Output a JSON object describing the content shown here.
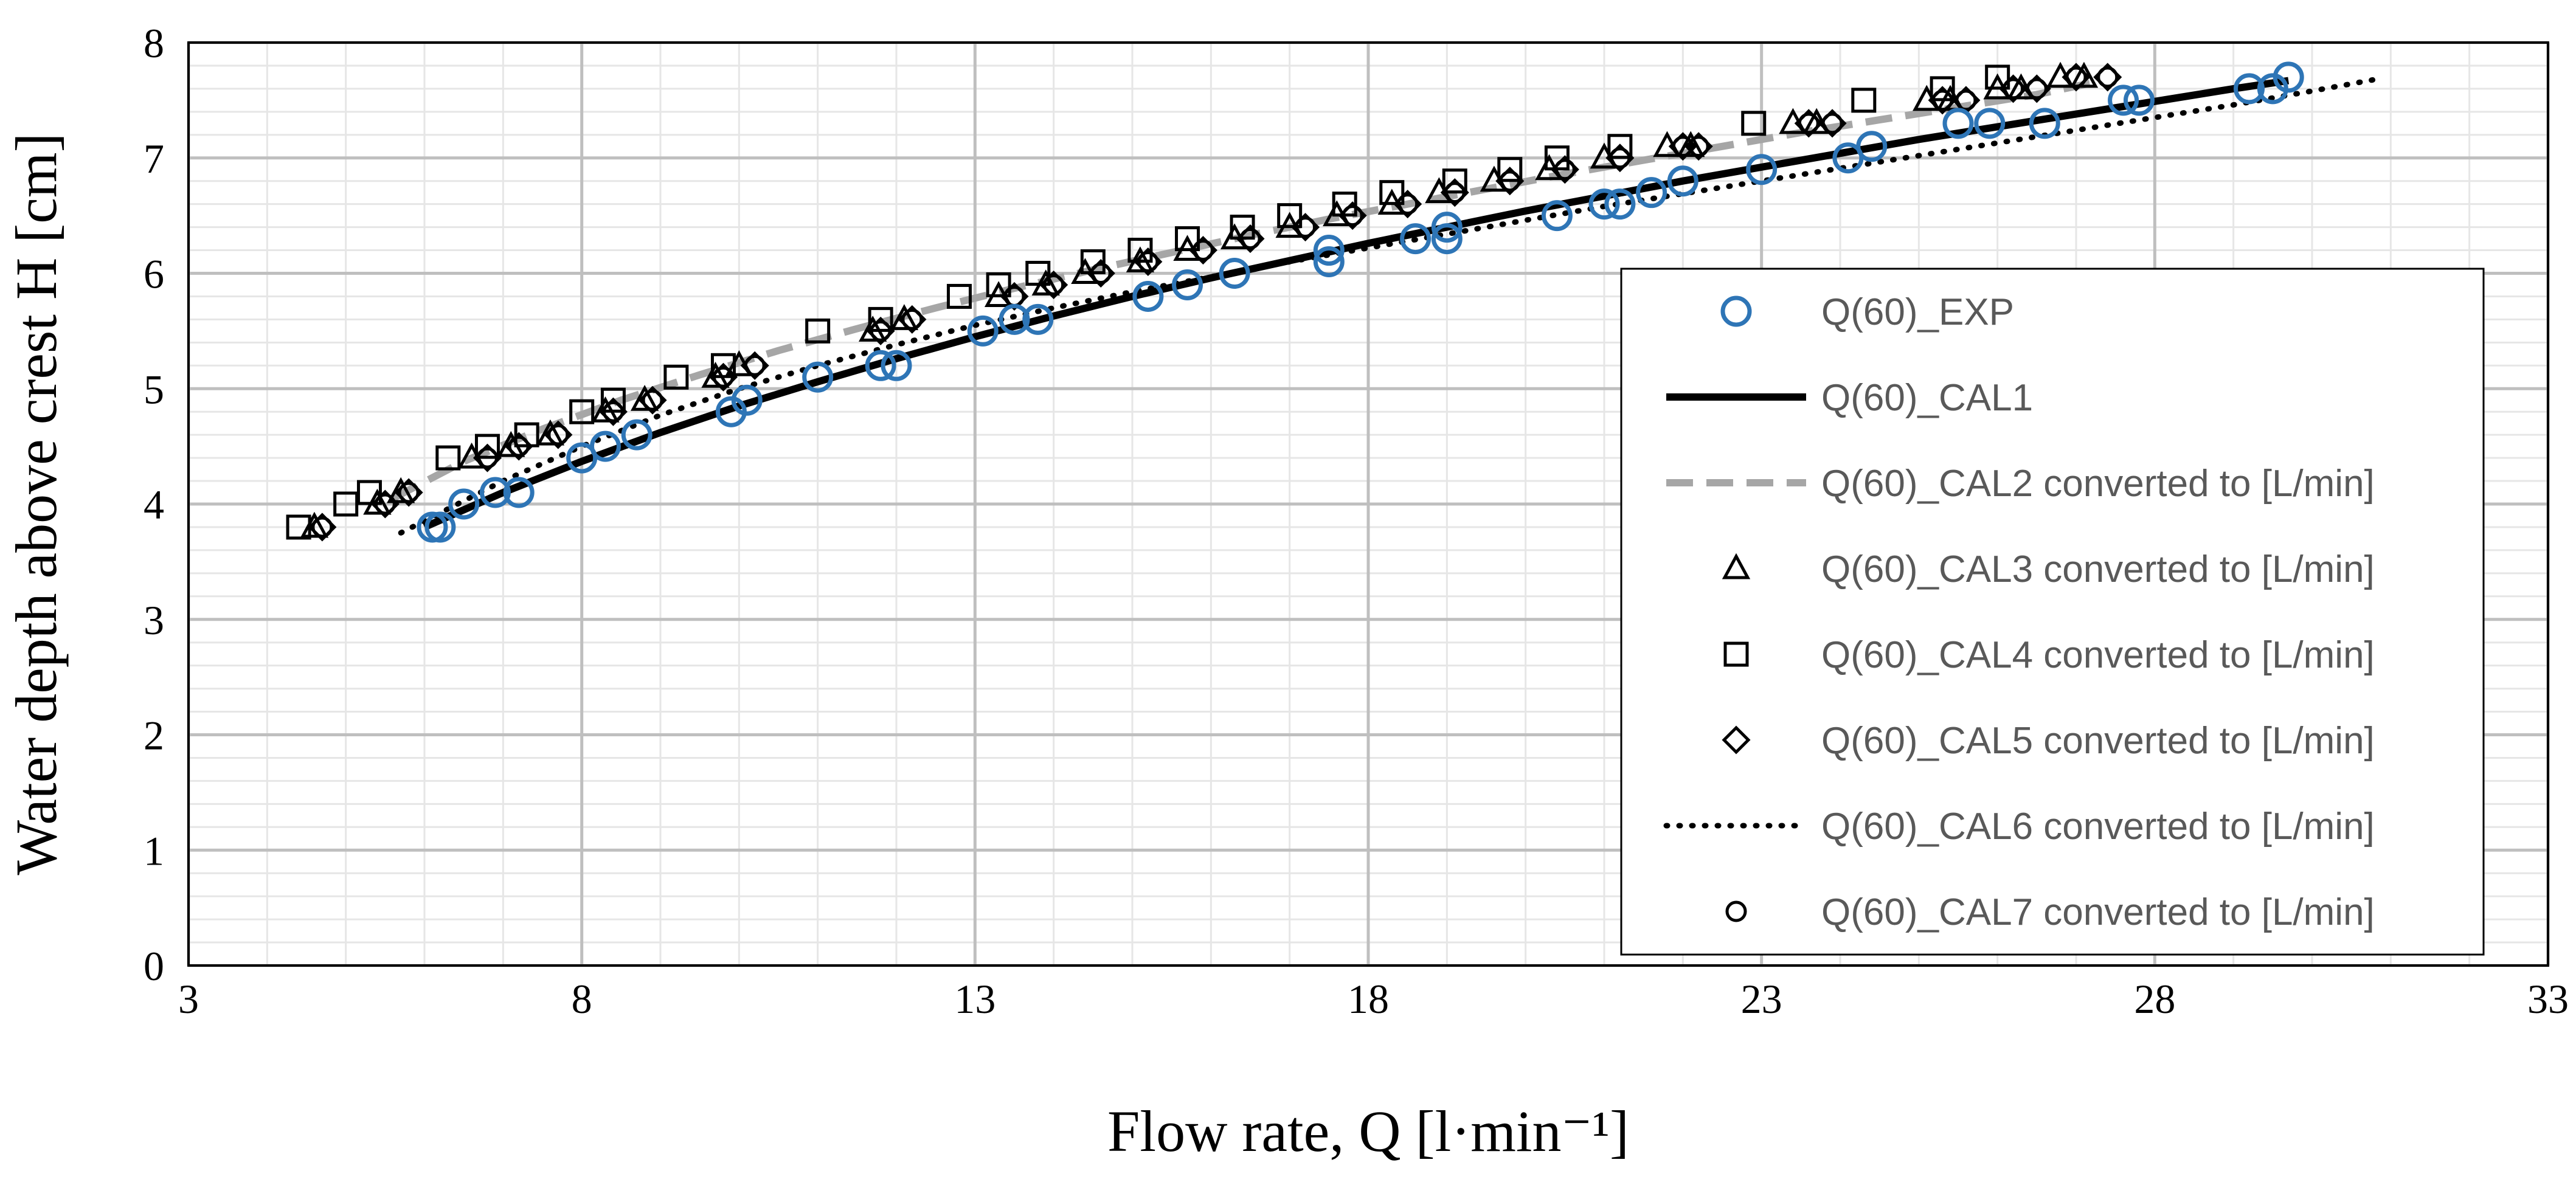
{
  "chart_data": {
    "type": "scatter",
    "title": "",
    "xlabel": "Flow rate, Q [l·min⁻¹]",
    "ylabel": "Water depth above crest H [cm]",
    "xlim": [
      3,
      33
    ],
    "ylim": [
      0,
      8
    ],
    "xticks": [
      "3",
      "8",
      "13",
      "18",
      "23",
      "28",
      "33"
    ],
    "yticks": [
      "0",
      "1",
      "2",
      "3",
      "4",
      "5",
      "6",
      "7",
      "8"
    ],
    "grid": true,
    "legend_position": "bottom-right",
    "colors": {
      "exp": "#2E75B6",
      "cal1": "#000000",
      "cal2": "#A6A6A6",
      "marker": "#000000",
      "grid_major": "#BFBFBF",
      "grid_minor": "#E6E6E6"
    },
    "series": [
      {
        "name": "Q(60)_EXP",
        "style": "circle-blue",
        "x": [
          6.1,
          6.2,
          6.5,
          6.9,
          7.2,
          8.0,
          8.3,
          8.7,
          9.9,
          10.1,
          11.0,
          11.8,
          12.0,
          13.1,
          13.5,
          13.8,
          15.2,
          15.7,
          16.3,
          17.5,
          17.5,
          18.6,
          19.0,
          19.0,
          20.4,
          21.0,
          21.2,
          21.6,
          22.0,
          23.0,
          24.1,
          24.4,
          25.5,
          25.9,
          26.6,
          27.6,
          27.8,
          29.2,
          29.5,
          29.7
        ],
        "y": [
          3.8,
          3.8,
          4.0,
          4.1,
          4.1,
          4.4,
          4.5,
          4.6,
          4.8,
          4.9,
          5.1,
          5.2,
          5.2,
          5.5,
          5.6,
          5.6,
          5.8,
          5.9,
          6.0,
          6.1,
          6.2,
          6.3,
          6.3,
          6.4,
          6.5,
          6.6,
          6.6,
          6.7,
          6.8,
          6.9,
          7.0,
          7.1,
          7.3,
          7.3,
          7.3,
          7.5,
          7.5,
          7.6,
          7.6,
          7.7
        ]
      },
      {
        "name": "Q(60)_CAL1",
        "style": "line-solid-black",
        "x": [
          6.0,
          7.0,
          8.0,
          9.0,
          10.0,
          11.0,
          12.0,
          13.0,
          14.0,
          15.0,
          16.0,
          17.0,
          18.0,
          19.0,
          20.0,
          21.0,
          22.0,
          23.0,
          24.0,
          25.0,
          26.0,
          27.0,
          28.0,
          29.0,
          29.7
        ],
        "y": [
          3.8,
          4.1,
          4.37,
          4.62,
          4.85,
          5.06,
          5.26,
          5.45,
          5.63,
          5.8,
          5.96,
          6.11,
          6.26,
          6.4,
          6.54,
          6.67,
          6.8,
          6.92,
          7.04,
          7.16,
          7.27,
          7.38,
          7.49,
          7.6,
          7.67
        ]
      },
      {
        "name": "Q(60)_CAL2 converted to [L/min]",
        "style": "line-dashed-gray",
        "x": [
          5.6,
          6.5,
          7.5,
          8.5,
          9.5,
          10.5,
          11.5,
          12.5,
          13.5,
          14.5,
          15.5,
          16.5,
          17.5,
          18.5,
          19.5,
          20.5,
          21.5,
          22.5,
          23.5,
          24.5,
          25.5,
          26.5,
          27.2
        ],
        "y": [
          4.05,
          4.37,
          4.65,
          4.9,
          5.12,
          5.33,
          5.52,
          5.7,
          5.87,
          6.03,
          6.18,
          6.33,
          6.47,
          6.6,
          6.73,
          6.86,
          6.98,
          7.1,
          7.22,
          7.33,
          7.44,
          7.55,
          7.65
        ]
      },
      {
        "name": "Q(60)_CAL3 converted to [L/min]",
        "style": "triangle",
        "x": [
          4.6,
          5.4,
          5.7,
          6.6,
          7.1,
          7.6,
          8.3,
          8.8,
          9.7,
          10.0,
          11.7,
          12.1,
          13.3,
          13.9,
          14.4,
          15.1,
          15.7,
          16.3,
          17.0,
          17.6,
          18.3,
          18.9,
          19.6,
          20.3,
          21.0,
          21.8,
          22.1,
          23.4,
          23.7,
          25.1,
          25.4,
          26.0,
          26.3,
          26.8,
          27.1
        ],
        "y": [
          3.8,
          4.0,
          4.1,
          4.4,
          4.5,
          4.6,
          4.8,
          4.9,
          5.1,
          5.2,
          5.5,
          5.6,
          5.8,
          5.9,
          6.0,
          6.1,
          6.2,
          6.3,
          6.4,
          6.5,
          6.6,
          6.7,
          6.8,
          6.9,
          7.0,
          7.1,
          7.1,
          7.3,
          7.3,
          7.5,
          7.5,
          7.6,
          7.6,
          7.7,
          7.7
        ]
      },
      {
        "name": "Q(60)_CAL4 converted to [L/min]",
        "style": "square",
        "x": [
          4.4,
          5.0,
          5.3,
          6.3,
          6.8,
          7.3,
          8.0,
          8.4,
          9.2,
          9.8,
          11.0,
          11.8,
          12.8,
          13.3,
          13.8,
          14.5,
          15.1,
          15.7,
          16.4,
          17.0,
          17.7,
          18.3,
          19.1,
          19.8,
          20.4,
          21.2,
          22.9,
          24.3,
          25.3,
          26.0
        ],
        "y": [
          3.8,
          4.0,
          4.1,
          4.4,
          4.5,
          4.6,
          4.8,
          4.9,
          5.1,
          5.2,
          5.5,
          5.6,
          5.8,
          5.9,
          6.0,
          6.1,
          6.2,
          6.3,
          6.4,
          6.5,
          6.6,
          6.7,
          6.8,
          6.9,
          7.0,
          7.1,
          7.3,
          7.5,
          7.6,
          7.7
        ]
      },
      {
        "name": "Q(60)_CAL5 converted to [L/min]",
        "style": "diamond",
        "x": [
          4.7,
          5.5,
          5.8,
          6.8,
          7.2,
          7.7,
          8.4,
          8.9,
          9.8,
          10.2,
          11.8,
          12.2,
          13.5,
          14.0,
          14.6,
          15.2,
          15.9,
          16.5,
          17.2,
          17.8,
          18.5,
          19.1,
          19.8,
          20.5,
          21.2,
          22.0,
          22.2,
          23.6,
          23.9,
          25.3,
          25.6,
          26.2,
          26.5,
          27.0,
          27.4
        ],
        "y": [
          3.8,
          4.0,
          4.1,
          4.4,
          4.5,
          4.6,
          4.8,
          4.9,
          5.1,
          5.2,
          5.5,
          5.6,
          5.8,
          5.9,
          6.0,
          6.1,
          6.2,
          6.3,
          6.4,
          6.5,
          6.6,
          6.7,
          6.8,
          6.9,
          7.0,
          7.1,
          7.1,
          7.3,
          7.3,
          7.5,
          7.5,
          7.6,
          7.6,
          7.7,
          7.7
        ]
      },
      {
        "name": "Q(60)_CAL6 converted to [L/min]",
        "style": "line-dotted-black",
        "x": [
          5.7,
          7.0,
          8.0,
          9.0,
          10.0,
          11.0,
          12.0,
          13.0,
          14.0,
          15.0,
          16.0,
          17.0,
          18.0,
          19.0,
          20.0,
          21.0,
          22.0,
          23.0,
          24.0,
          25.0,
          26.0,
          27.0,
          28.0,
          29.0,
          30.0,
          30.8
        ],
        "y": [
          3.75,
          4.2,
          4.5,
          4.77,
          5.0,
          5.2,
          5.38,
          5.55,
          5.7,
          5.84,
          5.97,
          6.1,
          6.22,
          6.34,
          6.46,
          6.58,
          6.69,
          6.8,
          6.91,
          7.02,
          7.13,
          7.24,
          7.35,
          7.46,
          7.58,
          7.68
        ]
      },
      {
        "name": "Q(60)_CAL7 converted to [L/min]",
        "style": "circle-black",
        "x": [
          4.7,
          5.5,
          5.8,
          6.8,
          7.2,
          7.7,
          8.4,
          8.9,
          9.8,
          10.2,
          11.8,
          12.2,
          13.5,
          14.0,
          14.6,
          15.2,
          15.9,
          16.5,
          17.2,
          17.8,
          18.5,
          19.1,
          19.8,
          20.5,
          21.2,
          22.0,
          22.2,
          23.6,
          23.9,
          25.3,
          25.6,
          26.2,
          26.5,
          27.0,
          27.4
        ],
        "y": [
          3.8,
          4.0,
          4.1,
          4.4,
          4.5,
          4.6,
          4.8,
          4.9,
          5.1,
          5.2,
          5.5,
          5.6,
          5.8,
          5.9,
          6.0,
          6.1,
          6.2,
          6.3,
          6.4,
          6.5,
          6.6,
          6.7,
          6.8,
          6.9,
          7.0,
          7.1,
          7.1,
          7.3,
          7.3,
          7.5,
          7.5,
          7.6,
          7.6,
          7.7,
          7.7
        ]
      }
    ]
  }
}
